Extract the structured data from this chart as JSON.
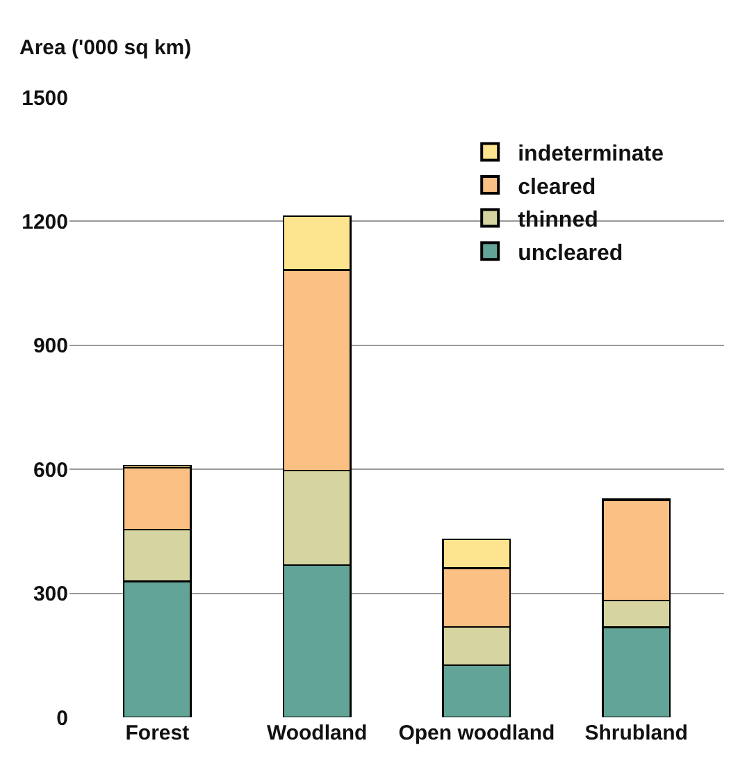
{
  "chart_data": {
    "type": "bar",
    "stacked": true,
    "ylabel": "Area ('000 sq km)",
    "categories": [
      "Forest",
      "Woodland",
      "Open woodland",
      "Shrubland"
    ],
    "series": [
      {
        "name": "uncleared",
        "color": "#62a598",
        "values": [
          329,
          368,
          126,
          218
        ]
      },
      {
        "name": "thinned",
        "color": "#d6d4a0",
        "values": [
          125,
          229,
          93,
          65
        ]
      },
      {
        "name": "cleared",
        "color": "#fbc083",
        "values": [
          150,
          485,
          142,
          242
        ]
      },
      {
        "name": "indeterminate",
        "color": "#fde58f",
        "values": [
          5,
          130,
          70,
          3
        ]
      }
    ],
    "ylim": [
      0,
      1500
    ],
    "yticks": [
      0,
      300,
      600,
      900,
      1200,
      1500
    ],
    "grid": "y",
    "legend": "top right"
  }
}
